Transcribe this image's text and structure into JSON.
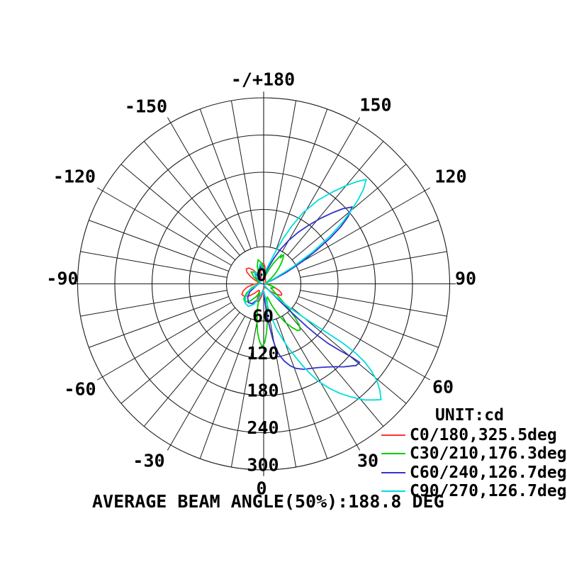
{
  "page": {
    "background": "#ffffff"
  },
  "chart_data": {
    "type": "line",
    "subtype": "polar-photometric-intensity-distribution",
    "title": "AVERAGE BEAM ANGLE(50%):188.8 DEG",
    "unit_label": "UNIT:cd",
    "grid_color": "#1c1c1c",
    "angle_axis": {
      "zero_position": "bottom",
      "range_deg": [
        -180,
        180
      ],
      "tick_step_deg": 10,
      "label_step_deg": 30,
      "labels": [
        {
          "angle": 180,
          "text": "-/+180"
        },
        {
          "angle": 150,
          "text": "150"
        },
        {
          "angle": 120,
          "text": "120"
        },
        {
          "angle": 90,
          "text": "90"
        },
        {
          "angle": 60,
          "text": "60"
        },
        {
          "angle": 30,
          "text": "30"
        },
        {
          "angle": 0,
          "text": "0"
        },
        {
          "angle": -30,
          "text": "-30"
        },
        {
          "angle": -60,
          "text": "-60"
        },
        {
          "angle": -90,
          "text": "-90"
        },
        {
          "angle": -120,
          "text": "-120"
        },
        {
          "angle": -150,
          "text": "-150"
        }
      ]
    },
    "radial_axis": {
      "unit": "cd",
      "max": 300,
      "ring_step": 60,
      "tick_labels": [
        "0",
        "60",
        "120",
        "180",
        "240",
        "300"
      ]
    },
    "series": [
      {
        "name": "C0/180,325.5deg",
        "plane": "C0/180",
        "beam_angle_deg": 325.5,
        "color": "#ff3333",
        "points": [
          [
            150,
            6
          ],
          [
            158,
            8
          ],
          [
            165,
            9
          ],
          [
            171,
            18
          ],
          [
            176,
            28
          ],
          [
            180,
            33
          ],
          [
            -176,
            33
          ],
          [
            -171,
            29
          ],
          [
            -166,
            20
          ],
          [
            -161,
            12
          ],
          [
            -155,
            10
          ],
          [
            -149,
            18
          ],
          [
            -143,
            28
          ],
          [
            -137,
            35
          ],
          [
            -131,
            37
          ],
          [
            -125,
            33
          ],
          [
            -119,
            24
          ],
          [
            -112,
            14
          ],
          [
            -106,
            8
          ],
          [
            -97,
            8
          ],
          [
            -88,
            16
          ],
          [
            -79,
            27
          ],
          [
            -71,
            35
          ],
          [
            -64,
            39
          ],
          [
            -57,
            37
          ],
          [
            -50,
            30
          ],
          [
            -44,
            21
          ],
          [
            -38,
            13
          ],
          [
            -31,
            13
          ],
          [
            -25,
            23
          ],
          [
            -20,
            30
          ],
          [
            -15,
            29
          ],
          [
            -10,
            21
          ],
          [
            -5,
            12
          ],
          [
            2,
            6
          ],
          [
            12,
            6
          ],
          [
            24,
            7
          ],
          [
            33,
            9
          ],
          [
            42,
            16
          ],
          [
            50,
            26
          ],
          [
            57,
            34
          ],
          [
            62,
            33
          ],
          [
            67,
            27
          ],
          [
            73,
            17
          ],
          [
            79,
            9
          ],
          [
            90,
            4
          ],
          [
            110,
            3
          ],
          [
            130,
            4
          ]
        ]
      },
      {
        "name": "C30/210,176.3deg",
        "plane": "C30/210",
        "beam_angle_deg": 176.3,
        "color": "#00d000",
        "points": [
          [
            112,
            4
          ],
          [
            118,
            6
          ],
          [
            125,
            13
          ],
          [
            131,
            24
          ],
          [
            136,
            35
          ],
          [
            140,
            45
          ],
          [
            143,
            52
          ],
          [
            145.5,
            57
          ],
          [
            147,
            50
          ],
          [
            148.5,
            55
          ],
          [
            151,
            46
          ],
          [
            155,
            36
          ],
          [
            159,
            26
          ],
          [
            164,
            17
          ],
          [
            170,
            11
          ],
          [
            175,
            16
          ],
          [
            180,
            26
          ],
          [
            -174,
            34
          ],
          [
            -167,
            40
          ],
          [
            -160,
            30
          ],
          [
            -154,
            18
          ],
          [
            -148,
            15
          ],
          [
            -141,
            24
          ],
          [
            -134,
            28
          ],
          [
            -126,
            20
          ],
          [
            -116,
            10
          ],
          [
            -100,
            6
          ],
          [
            -85,
            10
          ],
          [
            -72,
            20
          ],
          [
            -62,
            31
          ],
          [
            -53,
            40
          ],
          [
            -46,
            42
          ],
          [
            -38,
            35
          ],
          [
            -31,
            25
          ],
          [
            -25,
            15
          ],
          [
            -19,
            22
          ],
          [
            -14,
            42
          ],
          [
            -10,
            62
          ],
          [
            -7,
            80
          ],
          [
            -4,
            93
          ],
          [
            -1.5,
            101
          ],
          [
            1,
            95
          ],
          [
            3.5,
            78
          ],
          [
            6,
            58
          ],
          [
            9,
            38
          ],
          [
            12,
            24
          ],
          [
            16,
            22
          ],
          [
            21,
            38
          ],
          [
            25,
            54
          ],
          [
            29,
            70
          ],
          [
            33,
            84
          ],
          [
            36,
            93
          ],
          [
            38.5,
            95
          ],
          [
            41,
            87
          ],
          [
            43,
            74
          ],
          [
            45,
            59
          ],
          [
            47,
            44
          ],
          [
            50,
            30
          ],
          [
            54,
            20
          ],
          [
            60,
            13
          ],
          [
            66,
            16
          ],
          [
            71,
            19
          ],
          [
            76,
            14
          ],
          [
            83,
            8
          ],
          [
            95,
            5
          ],
          [
            104,
            4
          ]
        ]
      },
      {
        "name": "C60/240,126.7deg",
        "plane": "C60/240",
        "beam_angle_deg": 126.7,
        "color": "#3333cc",
        "points": [
          [
            104,
            4
          ],
          [
            109,
            5
          ],
          [
            114,
            18
          ],
          [
            117,
            42
          ],
          [
            120,
            72
          ],
          [
            122.5,
            102
          ],
          [
            124.5,
            130
          ],
          [
            126.5,
            155
          ],
          [
            128.5,
            174
          ],
          [
            131,
            189
          ],
          [
            133.5,
            176
          ],
          [
            136,
            159
          ],
          [
            139,
            140
          ],
          [
            142.5,
            119
          ],
          [
            146,
            101
          ],
          [
            150,
            81
          ],
          [
            154,
            62
          ],
          [
            158,
            45
          ],
          [
            162,
            32
          ],
          [
            167,
            22
          ],
          [
            173,
            14
          ],
          [
            178,
            18
          ],
          [
            -176,
            26
          ],
          [
            -169,
            29
          ],
          [
            -161,
            22
          ],
          [
            -154,
            12
          ],
          [
            -147,
            14
          ],
          [
            -140,
            21
          ],
          [
            -132,
            17
          ],
          [
            -120,
            8
          ],
          [
            -105,
            5
          ],
          [
            -88,
            8
          ],
          [
            -72,
            14
          ],
          [
            -60,
            26
          ],
          [
            -49,
            34
          ],
          [
            -39,
            39
          ],
          [
            -30,
            37
          ],
          [
            -21,
            27
          ],
          [
            -12,
            16
          ],
          [
            -5,
            10
          ],
          [
            1,
            12
          ],
          [
            4,
            28
          ],
          [
            6,
            50
          ],
          [
            8,
            72
          ],
          [
            9.5,
            92
          ],
          [
            11,
            108
          ],
          [
            13,
            120
          ],
          [
            15,
            129
          ],
          [
            18,
            139
          ],
          [
            21,
            146
          ],
          [
            25,
            152
          ],
          [
            29,
            156
          ],
          [
            33,
            161
          ],
          [
            37,
            168
          ],
          [
            41,
            177
          ],
          [
            44,
            186
          ],
          [
            47,
            194
          ],
          [
            48.6,
            199
          ],
          [
            50.7,
            200
          ],
          [
            50.2,
            184
          ],
          [
            48.8,
            163
          ],
          [
            47.3,
            142
          ],
          [
            46.2,
            120
          ],
          [
            45.3,
            99
          ],
          [
            44.7,
            79
          ],
          [
            44.2,
            61
          ],
          [
            43.4,
            44
          ],
          [
            42.2,
            28
          ],
          [
            40,
            16
          ],
          [
            35,
            8
          ],
          [
            27,
            4
          ],
          [
            14,
            3
          ]
        ]
      },
      {
        "name": "C90/270,126.7deg",
        "plane": "C90/270",
        "beam_angle_deg": 126.7,
        "color": "#00dddd",
        "points": [
          [
            106,
            4
          ],
          [
            112,
            6
          ],
          [
            117,
            22
          ],
          [
            120,
            55
          ],
          [
            123,
            95
          ],
          [
            126,
            135
          ],
          [
            128,
            162
          ],
          [
            130,
            185
          ],
          [
            132,
            207
          ],
          [
            133.5,
            222
          ],
          [
            135.5,
            236
          ],
          [
            137.5,
            224
          ],
          [
            140,
            207
          ],
          [
            143,
            186
          ],
          [
            147,
            161
          ],
          [
            151,
            131
          ],
          [
            154,
            104
          ],
          [
            157,
            78
          ],
          [
            160,
            54
          ],
          [
            163,
            38
          ],
          [
            167,
            28
          ],
          [
            172,
            20
          ],
          [
            176,
            12
          ],
          [
            180,
            16
          ],
          [
            -176,
            26
          ],
          [
            -170,
            33
          ],
          [
            -164,
            27
          ],
          [
            -158,
            16
          ],
          [
            -150,
            14
          ],
          [
            -143,
            24
          ],
          [
            -136,
            20
          ],
          [
            -126,
            10
          ],
          [
            -110,
            5
          ],
          [
            -95,
            6
          ],
          [
            -78,
            12
          ],
          [
            -65,
            26
          ],
          [
            -54,
            36
          ],
          [
            -44,
            43
          ],
          [
            -34,
            44
          ],
          [
            -26,
            37
          ],
          [
            -18,
            24
          ],
          [
            -10,
            14
          ],
          [
            -4,
            10
          ],
          [
            0,
            12
          ],
          [
            5,
            16
          ],
          [
            9,
            32
          ],
          [
            13,
            55
          ],
          [
            16,
            76
          ],
          [
            19,
            95
          ],
          [
            21,
            110
          ],
          [
            23,
            124
          ],
          [
            25,
            142
          ],
          [
            27,
            160
          ],
          [
            29,
            178
          ],
          [
            32,
            198
          ],
          [
            35,
            216
          ],
          [
            38,
            232
          ],
          [
            41,
            248
          ],
          [
            43.5,
            258
          ],
          [
            45.4,
            266
          ],
          [
            47.5,
            254
          ],
          [
            49.5,
            240
          ],
          [
            51,
            224
          ],
          [
            52.3,
            206
          ],
          [
            53,
            186
          ],
          [
            53.2,
            162
          ],
          [
            52.6,
            136
          ],
          [
            51.6,
            112
          ],
          [
            50.2,
            88
          ],
          [
            48.2,
            64
          ],
          [
            46,
            44
          ],
          [
            43,
            26
          ],
          [
            39,
            14
          ],
          [
            32,
            7
          ],
          [
            22,
            4
          ],
          [
            10,
            3
          ]
        ]
      }
    ]
  }
}
